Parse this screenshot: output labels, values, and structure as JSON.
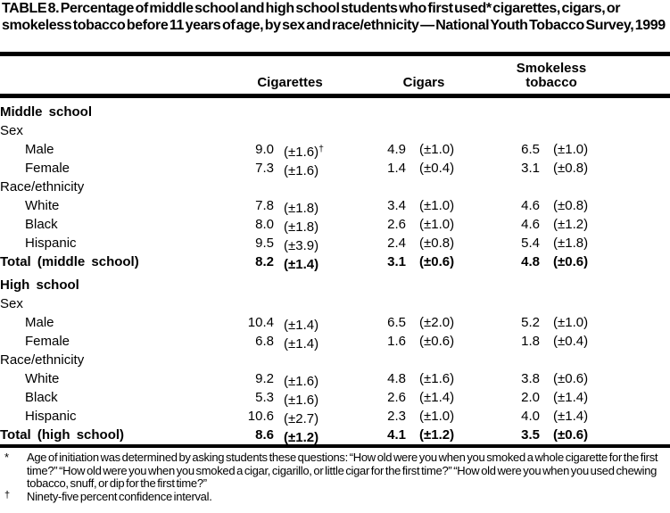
{
  "title": "TABLE 8. Percentage of middle school and high school students who first used* cigarettes, cigars, or smokeless tobacco before 11 years of age, by sex and race/ethnicity — National Youth Tobacco Survey, 1999",
  "header": {
    "cigarettes": "Cigarettes",
    "cigars": "Cigars",
    "smokeless": "Smokeless tobacco"
  },
  "table": {
    "rows": [
      {
        "label": "Middle school",
        "style": "section"
      },
      {
        "label": "Sex",
        "style": "group"
      },
      {
        "label": "Male",
        "style": "item",
        "cig_v": "9.0",
        "cig_ci": "(±1.6)",
        "cig_sup": "†",
        "cigar_v": "4.9",
        "cigar_ci": "(±1.0)",
        "smk_v": "6.5",
        "smk_ci": "(±1.0)"
      },
      {
        "label": "Female",
        "style": "item",
        "cig_v": "7.3",
        "cig_ci": "(±1.6)",
        "cigar_v": "1.4",
        "cigar_ci": "(±0.4)",
        "smk_v": "3.1",
        "smk_ci": "(±0.8)"
      },
      {
        "label": "Race/ethnicity",
        "style": "group"
      },
      {
        "label": "White",
        "style": "item",
        "cig_v": "7.8",
        "cig_ci": "(±1.8)",
        "cigar_v": "3.4",
        "cigar_ci": "(±1.0)",
        "smk_v": "4.6",
        "smk_ci": "(±0.8)"
      },
      {
        "label": "Black",
        "style": "item",
        "cig_v": "8.0",
        "cig_ci": "(±1.8)",
        "cigar_v": "2.6",
        "cigar_ci": "(±1.0)",
        "smk_v": "4.6",
        "smk_ci": "(±1.2)"
      },
      {
        "label": "Hispanic",
        "style": "item",
        "cig_v": "9.5",
        "cig_ci": "(±3.9)",
        "cigar_v": "2.4",
        "cigar_ci": "(±0.8)",
        "smk_v": "5.4",
        "smk_ci": "(±1.8)"
      },
      {
        "label": "Total (middle school)",
        "style": "total",
        "cig_v": "8.2",
        "cig_ci": "(±1.4)",
        "cigar_v": "3.1",
        "cigar_ci": "(±0.6)",
        "smk_v": "4.8",
        "smk_ci": "(±0.6)"
      },
      {
        "style": "spacer"
      },
      {
        "label": "High school",
        "style": "section"
      },
      {
        "label": "Sex",
        "style": "group"
      },
      {
        "label": "Male",
        "style": "item",
        "cig_v": "10.4",
        "cig_ci": "(±1.4)",
        "cigar_v": "6.5",
        "cigar_ci": "(±2.0)",
        "smk_v": "5.2",
        "smk_ci": "(±1.0)"
      },
      {
        "label": "Female",
        "style": "item",
        "cig_v": "6.8",
        "cig_ci": "(±1.4)",
        "cigar_v": "1.6",
        "cigar_ci": "(±0.6)",
        "smk_v": "1.8",
        "smk_ci": "(±0.4)"
      },
      {
        "label": "Race/ethnicity",
        "style": "group"
      },
      {
        "label": "White",
        "style": "item",
        "cig_v": "9.2",
        "cig_ci": "(±1.6)",
        "cigar_v": "4.8",
        "cigar_ci": "(±1.6)",
        "smk_v": "3.8",
        "smk_ci": "(±0.6)"
      },
      {
        "label": "Black",
        "style": "item",
        "cig_v": "5.3",
        "cig_ci": "(±1.6)",
        "cigar_v": "2.6",
        "cigar_ci": "(±1.4)",
        "smk_v": "2.0",
        "smk_ci": "(±1.4)"
      },
      {
        "label": "Hispanic",
        "style": "item",
        "cig_v": "10.6",
        "cig_ci": "(±2.7)",
        "cigar_v": "2.3",
        "cigar_ci": "(±1.0)",
        "smk_v": "4.0",
        "smk_ci": "(±1.4)"
      },
      {
        "label": "Total (high school)",
        "style": "total",
        "cig_v": "8.6",
        "cig_ci": "(±1.2)",
        "cigar_v": "4.1",
        "cigar_ci": "(±1.2)",
        "smk_v": "3.5",
        "smk_ci": "(±0.6)"
      }
    ]
  },
  "footnotes": [
    {
      "marker": "*",
      "text": "Age of initiation was determined by asking students these questions: “How old were you when you smoked a whole cigarette for the first time?” “How old were you when you smoked a cigar, cigarillo, or little cigar for the first time?” “How old were you when you used chewing tobacco, snuff, or dip for the first time?”"
    },
    {
      "marker": "†",
      "text": "Ninety-five percent confidence interval."
    }
  ],
  "colors": {
    "text": "#000000",
    "background": "#ffffff",
    "rule": "#000000"
  }
}
